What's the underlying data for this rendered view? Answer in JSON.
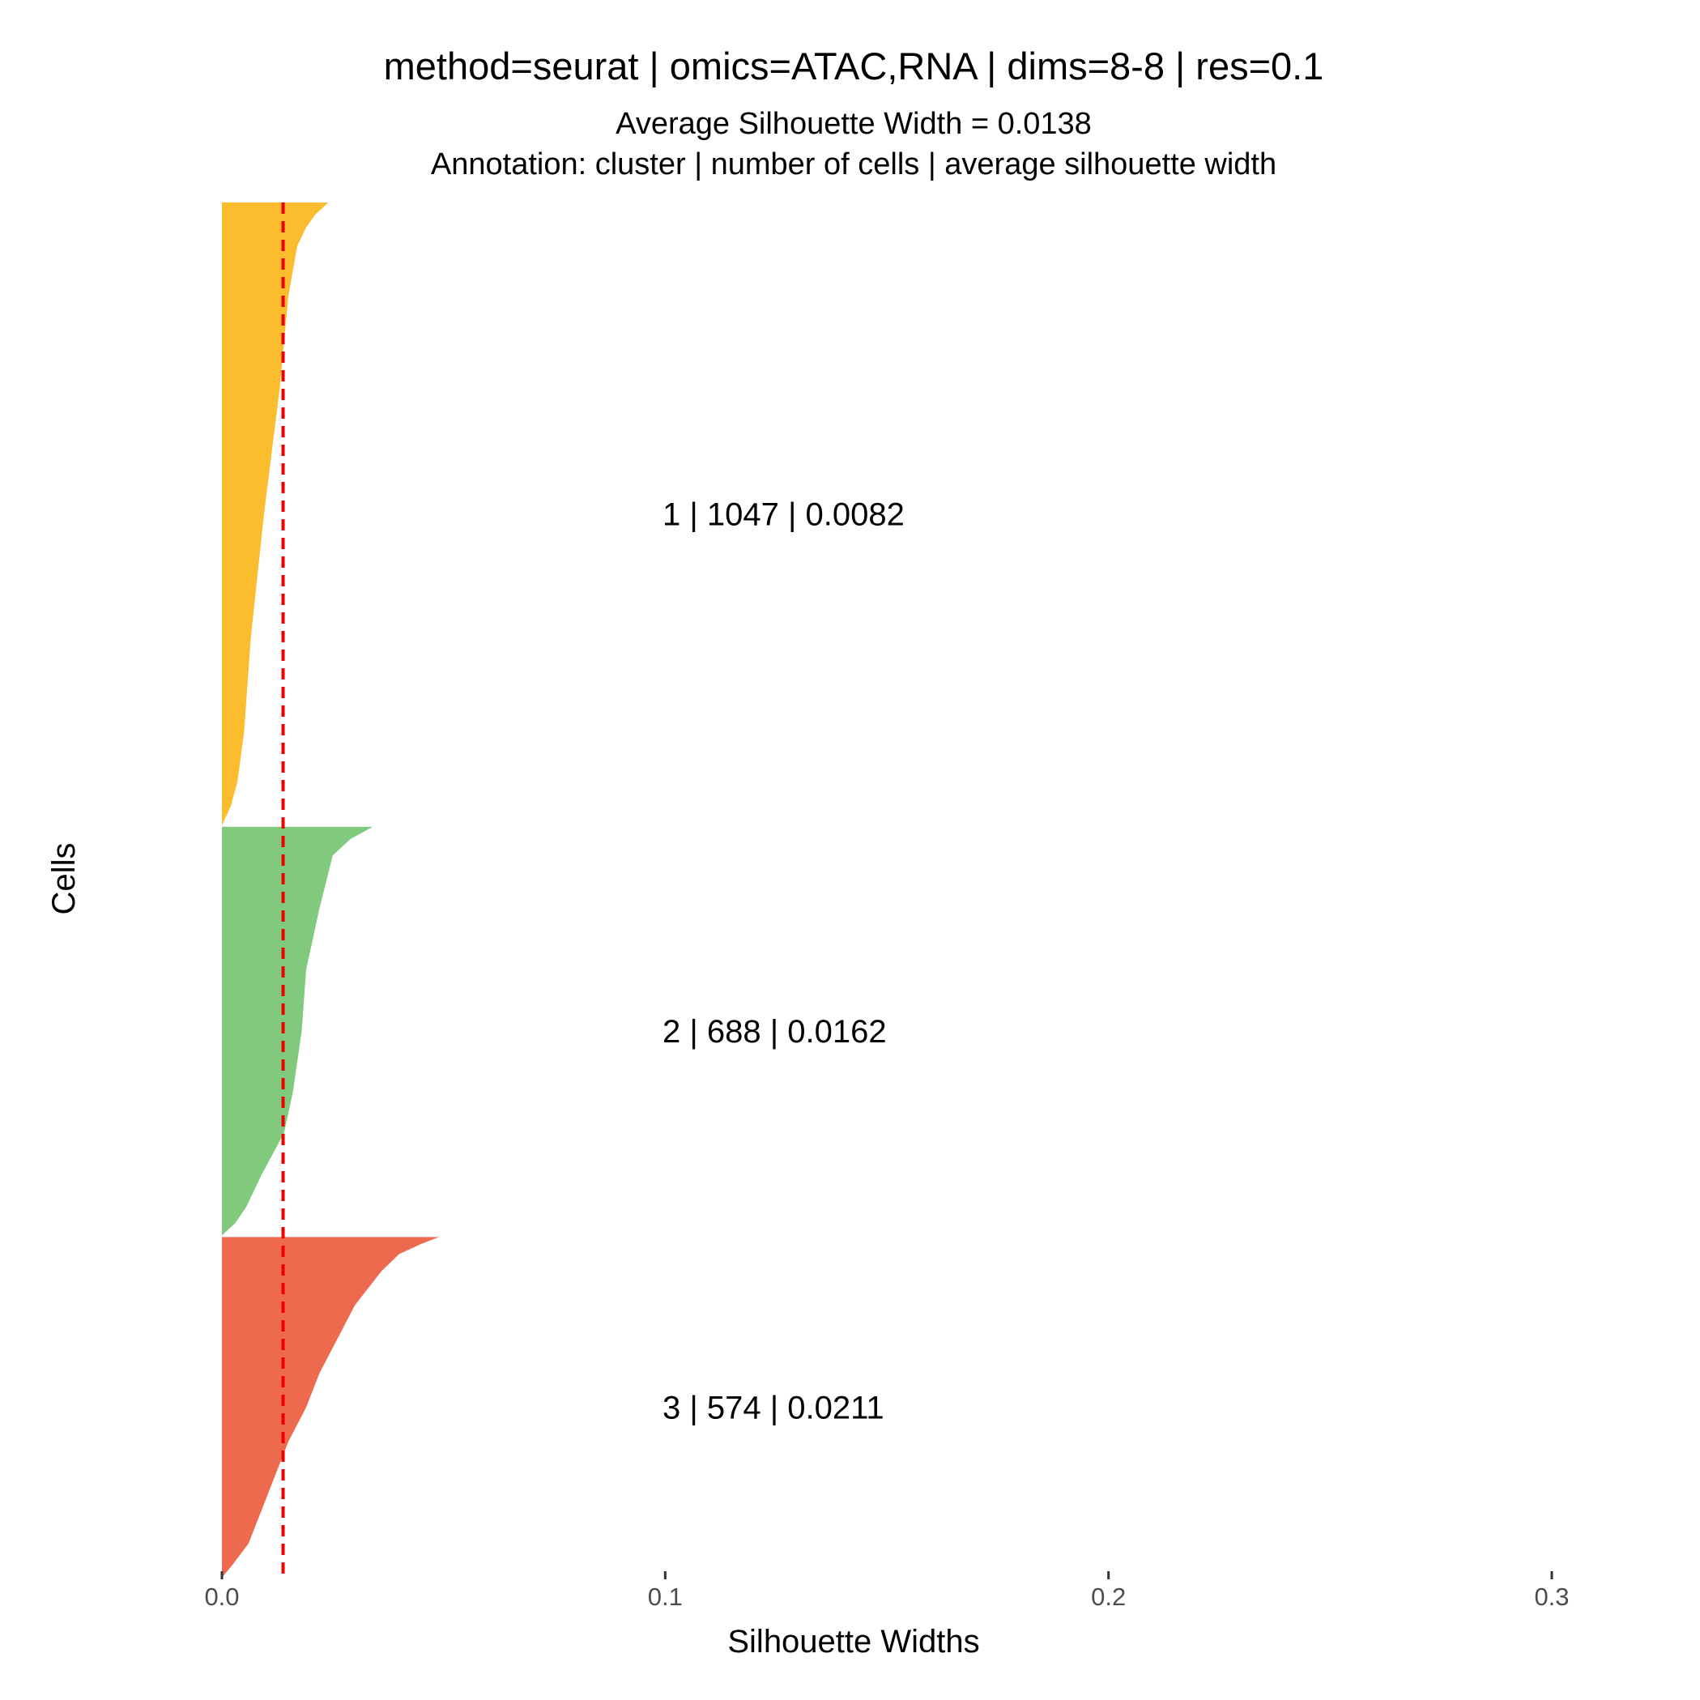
{
  "chart_data": {
    "type": "bar",
    "orientation": "horizontal",
    "title": "method=seurat | omics=ATAC,RNA | dims=8-8 | res=0.1",
    "subtitle_lines": [
      "Average Silhouette Width = 0.0138",
      "Annotation: cluster | number of cells | average silhouette width"
    ],
    "xlabel": "Silhouette Widths",
    "ylabel": "Cells",
    "xlim": [
      0,
      0.3
    ],
    "x_ticks": [
      0.0,
      0.1,
      0.2,
      0.3
    ],
    "x_tick_labels": [
      "0.0",
      "0.1",
      "0.2",
      "0.3"
    ],
    "average_silhouette_width": 0.0138,
    "reference_line": {
      "x": 0.0138,
      "color": "#ee0000",
      "style": "dashed"
    },
    "clusters": [
      {
        "cluster": "1",
        "n_cells": 1047,
        "avg_width": 0.0082,
        "color": "#fbbc2e",
        "annotation": "1 | 1047 | 0.0082",
        "profile": [
          [
            0,
            0.024
          ],
          [
            0.02,
            0.021
          ],
          [
            0.04,
            0.019
          ],
          [
            0.07,
            0.017
          ],
          [
            0.15,
            0.015
          ],
          [
            0.3,
            0.013
          ],
          [
            0.5,
            0.0095
          ],
          [
            0.7,
            0.0065
          ],
          [
            0.85,
            0.005
          ],
          [
            0.93,
            0.0035
          ],
          [
            0.97,
            0.002
          ],
          [
            1.0,
            0.0
          ]
        ]
      },
      {
        "cluster": "2",
        "n_cells": 688,
        "avg_width": 0.0162,
        "color": "#80c97d",
        "annotation": "2 | 688 | 0.0162",
        "profile": [
          [
            0,
            0.034
          ],
          [
            0.03,
            0.029
          ],
          [
            0.07,
            0.025
          ],
          [
            0.2,
            0.022
          ],
          [
            0.35,
            0.019
          ],
          [
            0.5,
            0.018
          ],
          [
            0.65,
            0.016
          ],
          [
            0.75,
            0.014
          ],
          [
            0.85,
            0.009
          ],
          [
            0.93,
            0.0055
          ],
          [
            0.97,
            0.003
          ],
          [
            1.0,
            0.0
          ]
        ]
      },
      {
        "cluster": "3",
        "n_cells": 574,
        "avg_width": 0.0211,
        "color": "#ed6a4e",
        "annotation": "3 | 574 | 0.0211",
        "profile": [
          [
            0,
            0.049
          ],
          [
            0.02,
            0.045
          ],
          [
            0.05,
            0.04
          ],
          [
            0.1,
            0.036
          ],
          [
            0.2,
            0.03
          ],
          [
            0.3,
            0.026
          ],
          [
            0.4,
            0.022
          ],
          [
            0.5,
            0.019
          ],
          [
            0.6,
            0.015
          ],
          [
            0.7,
            0.012
          ],
          [
            0.8,
            0.009
          ],
          [
            0.9,
            0.006
          ],
          [
            0.96,
            0.0025
          ],
          [
            1.0,
            0.0
          ]
        ]
      }
    ]
  }
}
